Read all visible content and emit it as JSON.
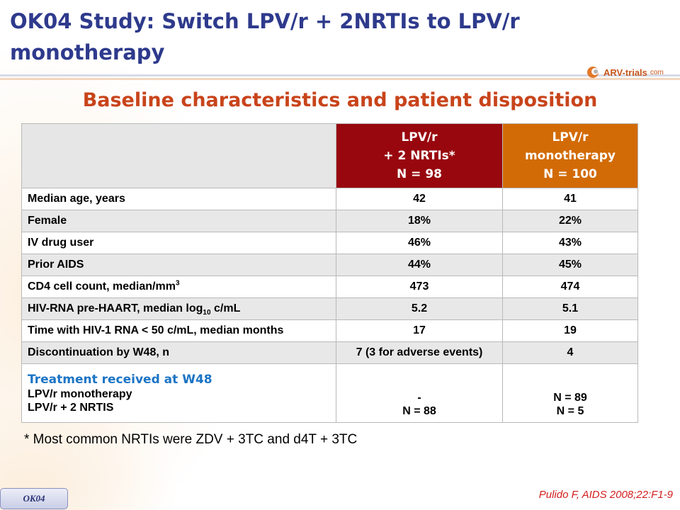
{
  "header": {
    "title_line1": "OK04 Study: Switch LPV/r + 2NRTIs to LPV/r",
    "title_line2": "monotherapy",
    "logo_text": "ARV-trials",
    "logo_domain": "com"
  },
  "subtitle": "Baseline characteristics and patient disposition",
  "table": {
    "columns": [
      {
        "line1": "LPV/r",
        "line2": "+ 2 NRTIs*",
        "line3": "N = 98",
        "color": "#98070e"
      },
      {
        "line1": "LPV/r",
        "line2": "monotherapy",
        "line3": "N = 100",
        "color": "#d26b06"
      }
    ],
    "rows": [
      {
        "label": "Median age, years",
        "a": "42",
        "b": "41"
      },
      {
        "label": "Female",
        "a": "18%",
        "b": "22%"
      },
      {
        "label": "IV drug user",
        "a": "46%",
        "b": "43%"
      },
      {
        "label": "Prior AIDS",
        "a": "44%",
        "b": "45%"
      },
      {
        "label_main": "CD4 cell count, median/mm",
        "label_sup": "3",
        "a": "473",
        "b": "474"
      },
      {
        "label_main": "HIV-RNA pre-HAART, median log",
        "label_sub": "10",
        "label_tail": " c/mL",
        "a": "5.2",
        "b": "5.1"
      },
      {
        "label": "Time with HIV-1 RNA < 50 c/mL, median months",
        "a": "17",
        "b": "19"
      },
      {
        "label": "Discontinuation by W48, n",
        "a": "7 (3 for adverse events)",
        "b": "4"
      }
    ],
    "treatment": {
      "heading": "Treatment received at W48",
      "line1": "LPV/r monotherapy",
      "line2": "LPV/r + 2 NRTIS",
      "a_line1": "-",
      "a_line2": "N = 88",
      "b_line1": "N = 89",
      "b_line2": "N = 5"
    }
  },
  "footnote": "* Most common NRTIs were ZDV + 3TC and d4T + 3TC",
  "tag": "OK04",
  "citation": "Pulido F, AIDS 2008;22:F1-9"
}
